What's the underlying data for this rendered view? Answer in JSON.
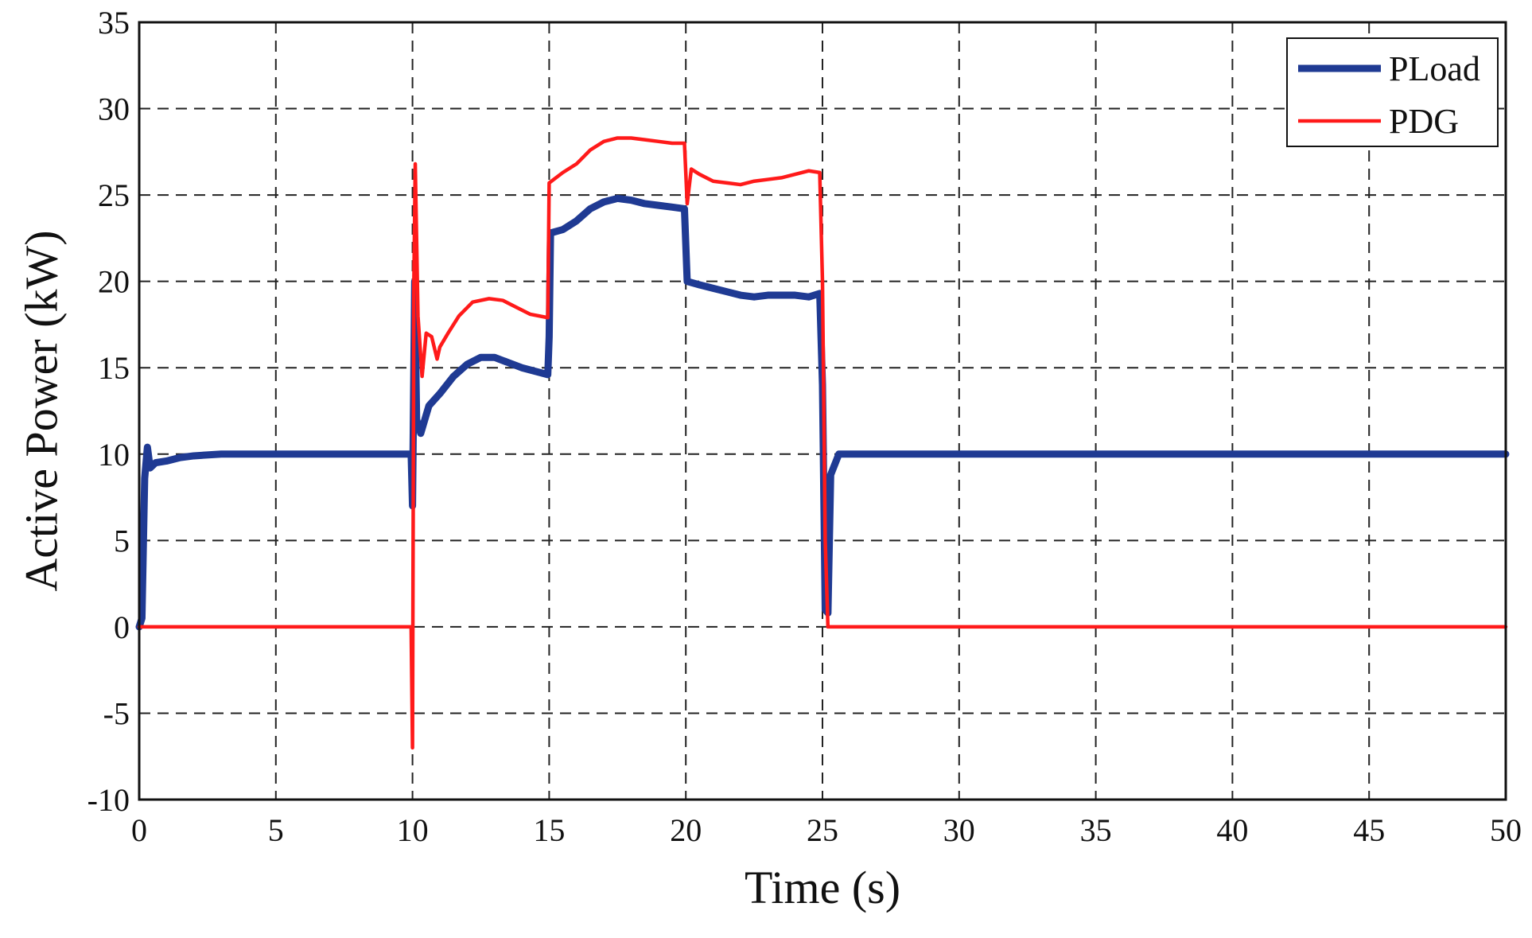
{
  "chart_data": {
    "type": "line",
    "title": "",
    "xlabel": "Time (s)",
    "ylabel": "Active Power (kW)",
    "xlim": [
      0,
      50
    ],
    "ylim": [
      -10,
      35
    ],
    "x_ticks": [
      "0",
      "5",
      "10",
      "15",
      "20",
      "25",
      "30",
      "35",
      "40",
      "45",
      "50"
    ],
    "y_ticks": [
      "-10",
      "-5",
      "0",
      "5",
      "10",
      "15",
      "20",
      "25",
      "30",
      "35"
    ],
    "grid": true,
    "grid_style": "dashed",
    "legend_position": "top-right",
    "series": [
      {
        "name": "PLoad",
        "color": "#1f3a93",
        "points": [
          [
            0,
            0
          ],
          [
            0.1,
            0.5
          ],
          [
            0.2,
            8.6
          ],
          [
            0.3,
            10.4
          ],
          [
            0.4,
            9.2
          ],
          [
            0.6,
            9.5
          ],
          [
            1.0,
            9.6
          ],
          [
            1.5,
            9.8
          ],
          [
            2.0,
            9.9
          ],
          [
            3.0,
            10.0
          ],
          [
            9.95,
            10.0
          ],
          [
            10.0,
            7.0
          ],
          [
            10.08,
            20.0
          ],
          [
            10.15,
            12.0
          ],
          [
            10.3,
            11.2
          ],
          [
            10.6,
            12.8
          ],
          [
            11.0,
            13.5
          ],
          [
            11.5,
            14.5
          ],
          [
            12.0,
            15.2
          ],
          [
            12.5,
            15.6
          ],
          [
            13.0,
            15.6
          ],
          [
            13.5,
            15.3
          ],
          [
            14.0,
            15.0
          ],
          [
            14.95,
            14.6
          ],
          [
            15.0,
            16.8
          ],
          [
            15.05,
            22.8
          ],
          [
            15.5,
            23.0
          ],
          [
            16.0,
            23.5
          ],
          [
            16.5,
            24.2
          ],
          [
            17.0,
            24.6
          ],
          [
            17.5,
            24.8
          ],
          [
            18.0,
            24.7
          ],
          [
            18.5,
            24.5
          ],
          [
            19.0,
            24.4
          ],
          [
            19.5,
            24.3
          ],
          [
            19.95,
            24.2
          ],
          [
            20.05,
            20.0
          ],
          [
            20.5,
            19.8
          ],
          [
            21.0,
            19.6
          ],
          [
            21.5,
            19.4
          ],
          [
            22.0,
            19.2
          ],
          [
            22.5,
            19.1
          ],
          [
            23.0,
            19.2
          ],
          [
            23.5,
            19.2
          ],
          [
            24.0,
            19.2
          ],
          [
            24.5,
            19.1
          ],
          [
            24.9,
            19.3
          ],
          [
            25.0,
            14.0
          ],
          [
            25.1,
            1.0
          ],
          [
            25.2,
            0.8
          ],
          [
            25.3,
            8.8
          ],
          [
            25.6,
            10.0
          ],
          [
            26.0,
            10.0
          ],
          [
            50,
            10.0
          ]
        ]
      },
      {
        "name": "PDG",
        "color": "#ff1a1a",
        "points": [
          [
            0,
            0
          ],
          [
            9.95,
            0
          ],
          [
            10.0,
            -7.0
          ],
          [
            10.05,
            20.0
          ],
          [
            10.1,
            26.8
          ],
          [
            10.2,
            18.0
          ],
          [
            10.35,
            14.5
          ],
          [
            10.5,
            17.0
          ],
          [
            10.7,
            16.8
          ],
          [
            10.9,
            15.5
          ],
          [
            11.0,
            16.2
          ],
          [
            11.3,
            17.0
          ],
          [
            11.7,
            18.0
          ],
          [
            12.2,
            18.8
          ],
          [
            12.8,
            19.0
          ],
          [
            13.3,
            18.9
          ],
          [
            13.8,
            18.5
          ],
          [
            14.3,
            18.1
          ],
          [
            14.95,
            17.9
          ],
          [
            15.0,
            25.7
          ],
          [
            15.5,
            26.3
          ],
          [
            16.0,
            26.8
          ],
          [
            16.5,
            27.6
          ],
          [
            17.0,
            28.1
          ],
          [
            17.5,
            28.3
          ],
          [
            18.0,
            28.3
          ],
          [
            18.5,
            28.2
          ],
          [
            19.0,
            28.1
          ],
          [
            19.5,
            28.0
          ],
          [
            19.95,
            28.0
          ],
          [
            20.05,
            24.5
          ],
          [
            20.2,
            26.5
          ],
          [
            20.5,
            26.2
          ],
          [
            21.0,
            25.8
          ],
          [
            21.5,
            25.7
          ],
          [
            22.0,
            25.6
          ],
          [
            22.5,
            25.8
          ],
          [
            23.0,
            25.9
          ],
          [
            23.5,
            26.0
          ],
          [
            24.0,
            26.2
          ],
          [
            24.5,
            26.4
          ],
          [
            24.9,
            26.3
          ],
          [
            25.0,
            20.0
          ],
          [
            25.1,
            5.0
          ],
          [
            25.2,
            0
          ],
          [
            50,
            0
          ]
        ]
      }
    ]
  }
}
